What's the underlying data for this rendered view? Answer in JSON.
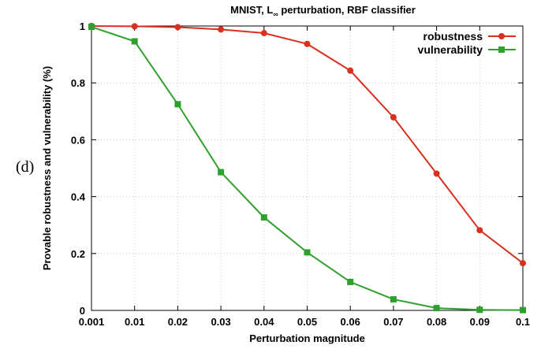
{
  "panel_label": "(d)",
  "chart_data": {
    "type": "line",
    "title_main": "MNIST, L",
    "title_sub": "∞",
    "title_rest": " perturbation, RBF classifier",
    "xlabel": "Perturbation magnitude",
    "ylabel": "Provable robustness and vulnerability (%)",
    "categories": [
      "0.001",
      "0.01",
      "0.02",
      "0.03",
      "0.04",
      "0.05",
      "0.06",
      "0.07",
      "0.08",
      "0.09",
      "0.1"
    ],
    "yticks": [
      "0",
      "0.2",
      "0.4",
      "0.6",
      "0.8",
      "1"
    ],
    "ylim": [
      0,
      1
    ],
    "grid": true,
    "legend_position": "top-right",
    "series": [
      {
        "name": "robustness",
        "color": "#d7301f",
        "marker": "circle",
        "values": [
          1.0,
          0.999,
          0.996,
          0.988,
          0.975,
          0.937,
          0.843,
          0.679,
          0.481,
          0.282,
          0.166
        ]
      },
      {
        "name": "vulnerability",
        "color": "#2ea02c",
        "marker": "square",
        "values": [
          0.997,
          0.946,
          0.725,
          0.486,
          0.327,
          0.204,
          0.1,
          0.039,
          0.008,
          0.002,
          0.001
        ]
      }
    ]
  }
}
